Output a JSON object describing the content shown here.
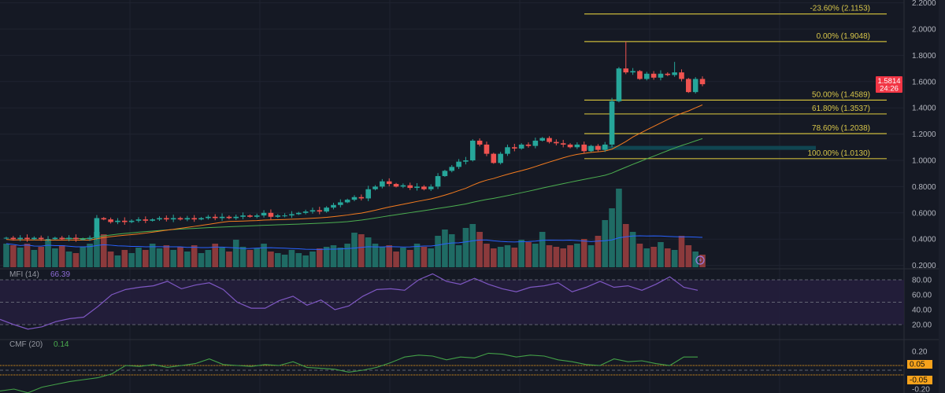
{
  "chart_data": {
    "type": "candlestick",
    "price_axis": {
      "ticks": [
        "2.2000",
        "2.0000",
        "1.8000",
        "1.6000",
        "1.4000",
        "1.2000",
        "1.0000",
        "0.8000",
        "0.6000",
        "0.4000",
        "0.2000"
      ],
      "ylim": [
        0.2,
        2.2
      ]
    },
    "closes": [
      0.41,
      0.4,
      0.41,
      0.4,
      0.41,
      0.4,
      0.4,
      0.41,
      0.4,
      0.41,
      0.4,
      0.4,
      0.41,
      0.56,
      0.55,
      0.53,
      0.54,
      0.53,
      0.54,
      0.55,
      0.54,
      0.55,
      0.56,
      0.55,
      0.56,
      0.55,
      0.56,
      0.55,
      0.56,
      0.57,
      0.56,
      0.57,
      0.56,
      0.57,
      0.58,
      0.57,
      0.58,
      0.6,
      0.57,
      0.58,
      0.58,
      0.59,
      0.6,
      0.61,
      0.62,
      0.61,
      0.64,
      0.66,
      0.68,
      0.7,
      0.72,
      0.71,
      0.78,
      0.8,
      0.84,
      0.82,
      0.8,
      0.81,
      0.79,
      0.8,
      0.78,
      0.8,
      0.88,
      0.92,
      0.95,
      0.99,
      1.0,
      1.15,
      1.12,
      1.05,
      0.98,
      1.05,
      1.1,
      1.09,
      1.12,
      1.11,
      1.15,
      1.17,
      1.14,
      1.13,
      1.12,
      1.1,
      1.12,
      1.07,
      1.11,
      1.08,
      1.12,
      1.45,
      1.7,
      1.67,
      1.68,
      1.62,
      1.66,
      1.63,
      1.66,
      1.65,
      1.67,
      1.62,
      1.52,
      1.62,
      1.58
    ],
    "high_overrides": {
      "89": 1.9048,
      "96": 1.75
    },
    "volumes": [
      30,
      28,
      25,
      30,
      22,
      26,
      35,
      24,
      28,
      20,
      18,
      26,
      30,
      45,
      42,
      20,
      15,
      22,
      18,
      25,
      22,
      30,
      24,
      28,
      22,
      26,
      20,
      28,
      18,
      22,
      30,
      25,
      20,
      35,
      26,
      22,
      24,
      30,
      20,
      18,
      16,
      22,
      18,
      15,
      20,
      24,
      26,
      28,
      25,
      30,
      44,
      42,
      38,
      30,
      26,
      28,
      20,
      25,
      22,
      30,
      26,
      24,
      40,
      48,
      42,
      28,
      50,
      55,
      45,
      30,
      24,
      26,
      28,
      25,
      35,
      32,
      30,
      45,
      28,
      26,
      24,
      28,
      30,
      36,
      28,
      40,
      60,
      75,
      100,
      55,
      45,
      30,
      24,
      26,
      32,
      24,
      22,
      40,
      28,
      20,
      16
    ],
    "last_price": {
      "value": "1.5814",
      "countdown": "24:26"
    },
    "fib_levels": [
      {
        "label": "-23.60% (2.1153)",
        "price": 2.1153
      },
      {
        "label": "0.00% (1.9048)",
        "price": 1.9048
      },
      {
        "label": "50.00% (1.4589)",
        "price": 1.4589
      },
      {
        "label": "61.80% (1.3537)",
        "price": 1.3537
      },
      {
        "label": "78.60% (1.2038)",
        "price": 1.2038
      },
      {
        "label": "100.00% (1.0130)",
        "price": 1.013
      }
    ],
    "zone": {
      "price_low": 1.08,
      "price_high": 1.11
    },
    "mfi": {
      "title": "MFI (14)",
      "value": "66.39",
      "ticks": [
        "80.00",
        "60.00",
        "40.00",
        "20.00"
      ],
      "values": [
        27,
        20,
        14,
        17,
        24,
        28,
        30,
        44,
        60,
        67,
        70,
        72,
        78,
        68,
        73,
        76,
        67,
        50,
        42,
        42,
        52,
        58,
        46,
        53,
        40,
        45,
        58,
        67,
        68,
        66,
        80,
        88,
        78,
        74,
        82,
        74,
        68,
        64,
        70,
        72,
        76,
        64,
        70,
        78,
        70,
        72,
        66,
        74,
        84,
        70,
        66
      ]
    },
    "cmf": {
      "title": "CMF (20)",
      "value": "0.14",
      "ticks": [
        "0.20",
        "-0.20"
      ],
      "bands": [
        "0.05",
        "-0.05"
      ],
      "values": [
        -0.22,
        -0.2,
        -0.24,
        -0.18,
        -0.15,
        -0.12,
        -0.1,
        -0.08,
        -0.04,
        0.05,
        0.04,
        0.06,
        0.03,
        0.05,
        0.07,
        0.12,
        0.06,
        0.05,
        0.04,
        0.06,
        0.05,
        0.09,
        0.03,
        0.02,
        0.01,
        -0.02,
        0.0,
        0.03,
        0.08,
        0.14,
        0.16,
        0.15,
        0.11,
        0.14,
        0.13,
        0.18,
        0.17,
        0.14,
        0.16,
        0.15,
        0.11,
        0.09,
        0.06,
        0.05,
        0.12,
        0.09,
        0.1,
        0.07,
        0.05,
        0.14,
        0.14
      ]
    },
    "colors": {
      "up": "#26a69a",
      "down": "#ef5350",
      "vol_up": "#1f6b64",
      "vol_down": "#8b3a3c",
      "fib": "#c9b83a",
      "ma_fast": "#f57c1f",
      "ma_slow": "#4caf50",
      "vol_ma": "#2962ff",
      "mfi": "#7e57c2",
      "cmf": "#43a047",
      "band": "#f7a21b"
    }
  }
}
